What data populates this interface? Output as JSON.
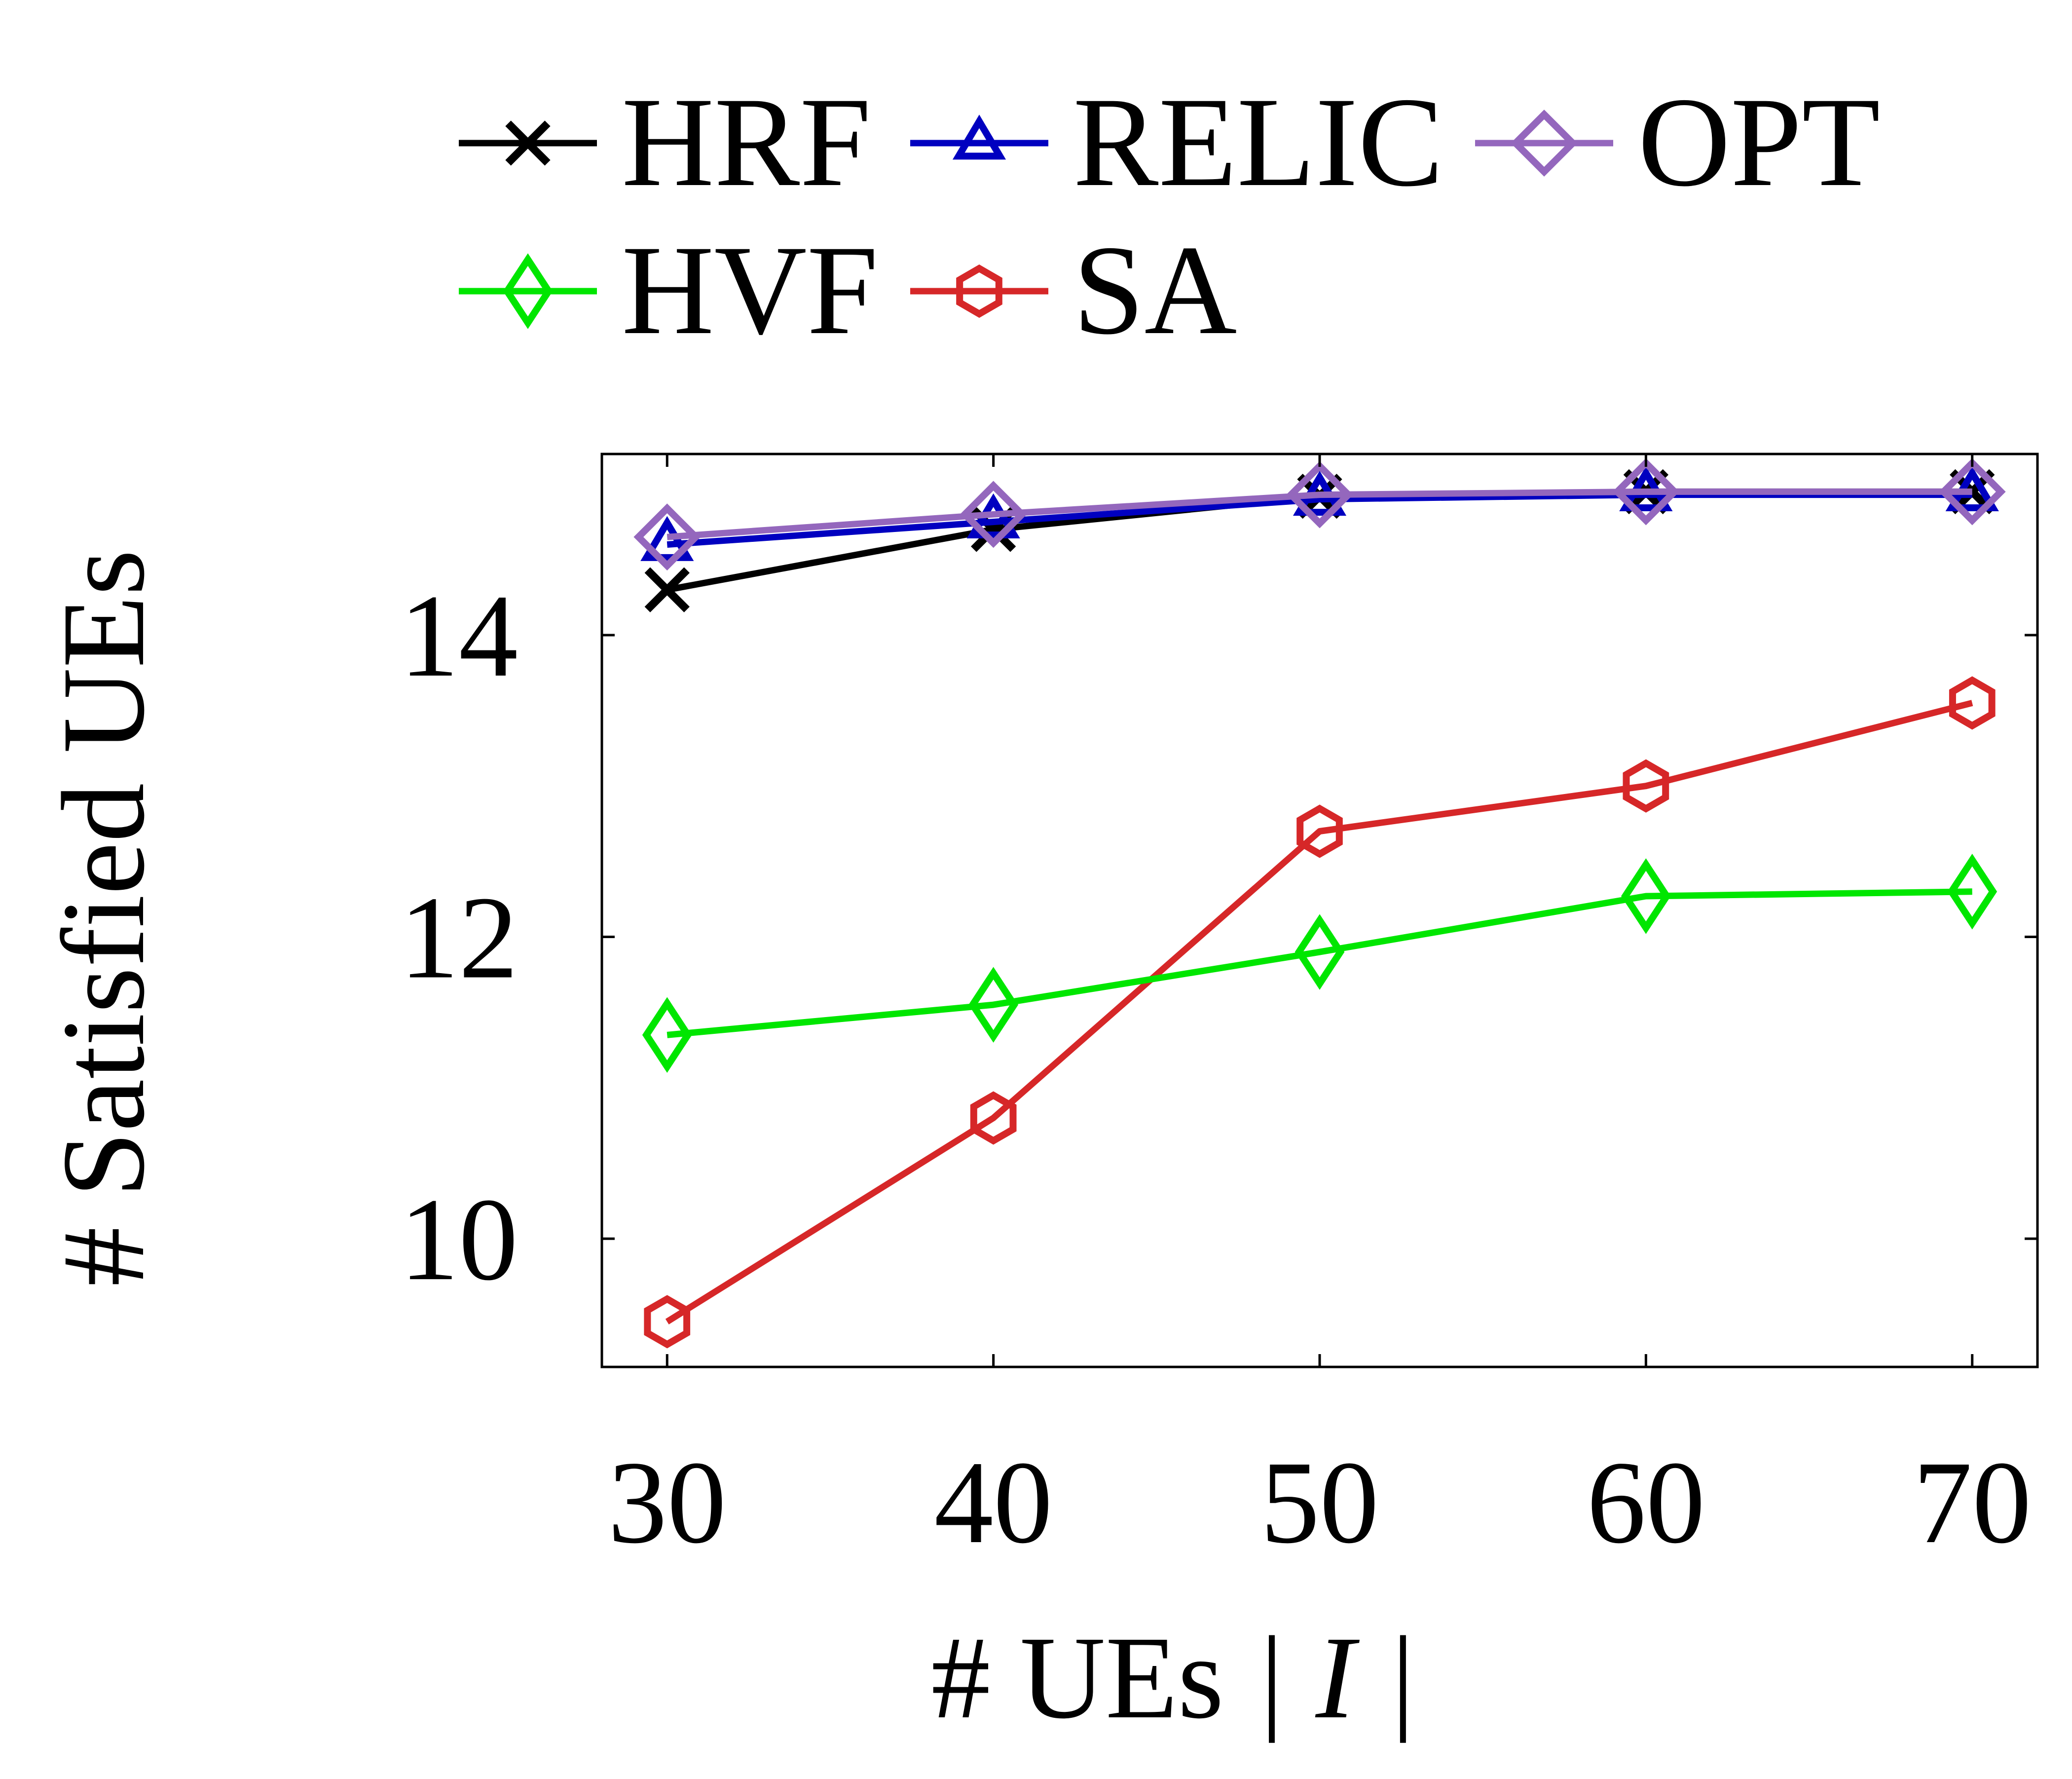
{
  "chart_data": {
    "type": "line",
    "xlabel": "# UEs",
    "xlabel_math": "| I |",
    "ylabel": "# Satisfied UEs",
    "x": [
      30,
      40,
      50,
      60,
      70
    ],
    "xlim": [
      28,
      72
    ],
    "ylim": [
      9.15,
      15.2
    ],
    "x_ticks": [
      "30",
      "40",
      "50",
      "60",
      "70"
    ],
    "y_ticks": [
      {
        "value": 10,
        "label": "10"
      },
      {
        "value": 12,
        "label": "12"
      },
      {
        "value": 14,
        "label": "14"
      }
    ],
    "grid": false,
    "legend_position": "top",
    "series": [
      {
        "name": "HRF",
        "color": "#000000",
        "marker": "x-mark",
        "values": [
          14.3,
          14.7,
          14.92,
          14.95,
          14.95
        ]
      },
      {
        "name": "RELIC",
        "color": "#0000c0",
        "marker": "triangle",
        "values": [
          14.6,
          14.75,
          14.9,
          14.93,
          14.93
        ]
      },
      {
        "name": "OPT",
        "color": "#9467bd",
        "marker": "diamond",
        "values": [
          14.65,
          14.8,
          14.93,
          14.95,
          14.95
        ]
      },
      {
        "name": "HVF",
        "color": "#00e600",
        "marker": "thin-diamond",
        "values": [
          11.35,
          11.55,
          11.9,
          12.27,
          12.3
        ]
      },
      {
        "name": "SA",
        "color": "#d62728",
        "marker": "hexagon",
        "values": [
          9.45,
          10.8,
          12.7,
          13.0,
          13.55
        ]
      }
    ]
  }
}
